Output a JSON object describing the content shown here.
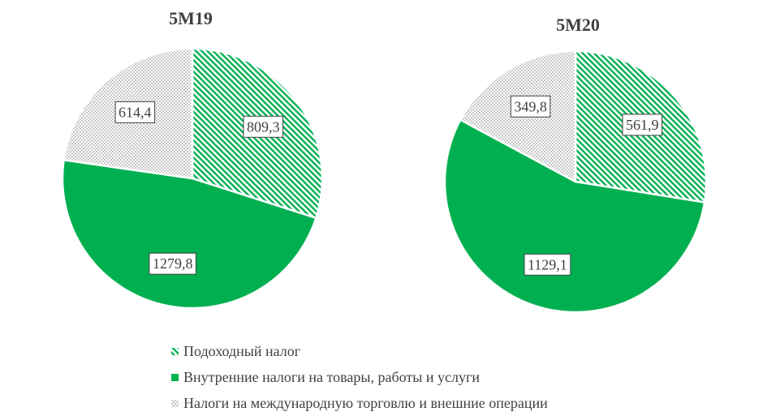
{
  "chart_data": [
    {
      "type": "pie",
      "title": "5M19",
      "categories": [
        "Подоходный налог",
        "Внутренние налоги на товары, работы и услуги",
        "Налоги на международную торговлю и внешние операции"
      ],
      "values": [
        809.3,
        1279.8,
        614.4
      ],
      "labels": [
        "809,3",
        "1279,8",
        "614,4"
      ]
    },
    {
      "type": "pie",
      "title": "5M20",
      "categories": [
        "Подоходный налог",
        "Внутренние налоги на товары, работы и услуги",
        "Налоги на международную торговлю и внешние операции"
      ],
      "values": [
        561.9,
        1129.1,
        349.8
      ],
      "labels": [
        "561,9",
        "1129,1",
        "349,8"
      ]
    }
  ],
  "legend": [
    {
      "label": "Подоходный налог",
      "pattern": "diagonal-green"
    },
    {
      "label": "Внутренние налоги на товары, работы и услуги",
      "pattern": "solid-green"
    },
    {
      "label": "Налоги на международную торговлю и внешние операции",
      "pattern": "dotted-grey"
    }
  ],
  "colors": {
    "green": "#00b050",
    "grey_pattern": "#bfbfbf",
    "text": "#404040"
  }
}
